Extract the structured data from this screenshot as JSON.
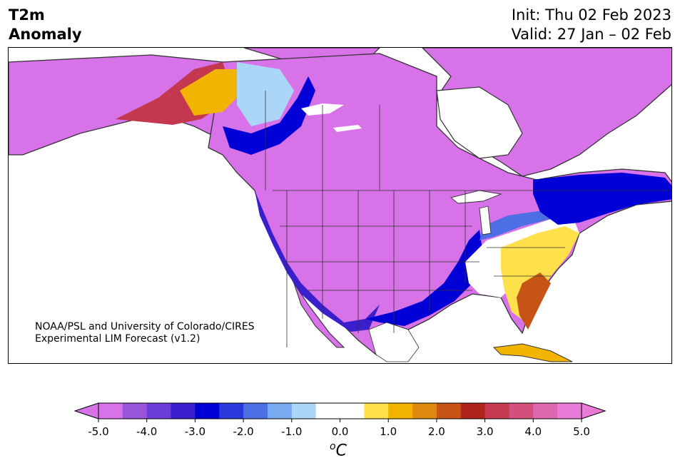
{
  "header": {
    "title_line1": "T2m",
    "title_line2": "Anomaly",
    "init": "Init: Thu 02 Feb 2023",
    "valid": "Valid: 27 Jan – 02 Feb"
  },
  "credit": {
    "line1": "NOAA/PSL and University of Colorado/CIRES",
    "line2": "Experimental LIM Forecast (v1.2)"
  },
  "colorbar": {
    "unit_base": "C",
    "unit_super": "o",
    "ticks": [
      "-5.0",
      "-4.0",
      "-3.0",
      "-2.0",
      "-1.0",
      "0.0",
      "1.0",
      "2.0",
      "3.0",
      "4.0",
      "5.0"
    ],
    "range": [
      -5.0,
      5.0
    ],
    "extend": "both",
    "colors": [
      "#d872e8",
      "#9a55dd",
      "#6a3cd8",
      "#3a20cc",
      "#0000d6",
      "#2838dc",
      "#4c70e4",
      "#78aaf0",
      "#acd6f8",
      "#ffffff",
      "#ffffff",
      "#fde04a",
      "#f2b400",
      "#de8a10",
      "#c65414",
      "#b0241e",
      "#c43850",
      "#d4507c",
      "#de68b0",
      "#e87ad8"
    ],
    "under_color": "#d872e8",
    "over_color": "#e87ad8"
  },
  "map": {
    "land_color": "#d872e8",
    "border_color": "#333333"
  }
}
